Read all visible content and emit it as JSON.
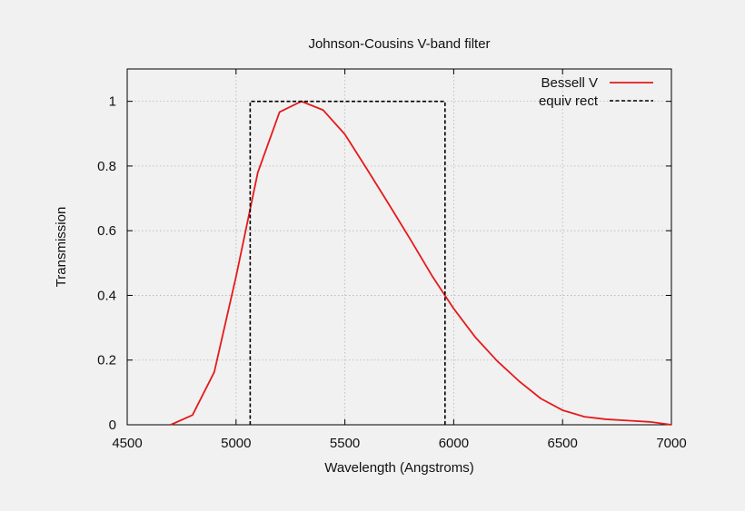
{
  "chart_data": {
    "type": "line",
    "title": "Johnson-Cousins V-band filter",
    "xlabel": "Wavelength (Angstroms)",
    "ylabel": "Transmission",
    "xlim": [
      4500,
      7000
    ],
    "ylim": [
      0,
      1.1
    ],
    "xticks": [
      4500,
      5000,
      5500,
      6000,
      6500,
      7000
    ],
    "yticks": [
      0,
      0.2,
      0.4,
      0.6,
      0.8,
      1
    ],
    "yticklabels": [
      "0",
      "0.2",
      "0.4",
      "0.6",
      "0.8",
      "1"
    ],
    "grid": true,
    "legend_position": "top-right",
    "series": [
      {
        "name": "Bessell V",
        "color": "#e41a1c",
        "style": "solid",
        "x": [
          4700,
          4800,
          4900,
          5000,
          5100,
          5200,
          5300,
          5400,
          5500,
          5600,
          5700,
          5800,
          5900,
          6000,
          6100,
          6200,
          6300,
          6400,
          6500,
          6600,
          6700,
          6800,
          6900,
          7000
        ],
        "y": [
          0.0,
          0.03,
          0.163,
          0.458,
          0.78,
          0.967,
          1.0,
          0.973,
          0.898,
          0.792,
          0.684,
          0.574,
          0.461,
          0.359,
          0.27,
          0.197,
          0.135,
          0.081,
          0.045,
          0.025,
          0.017,
          0.013,
          0.009,
          0.0
        ]
      },
      {
        "name": "equiv rect",
        "color": "#000000",
        "style": "dashed",
        "x": [
          5065,
          5065,
          5960,
          5960
        ],
        "y": [
          0,
          1,
          1,
          0
        ]
      }
    ]
  }
}
